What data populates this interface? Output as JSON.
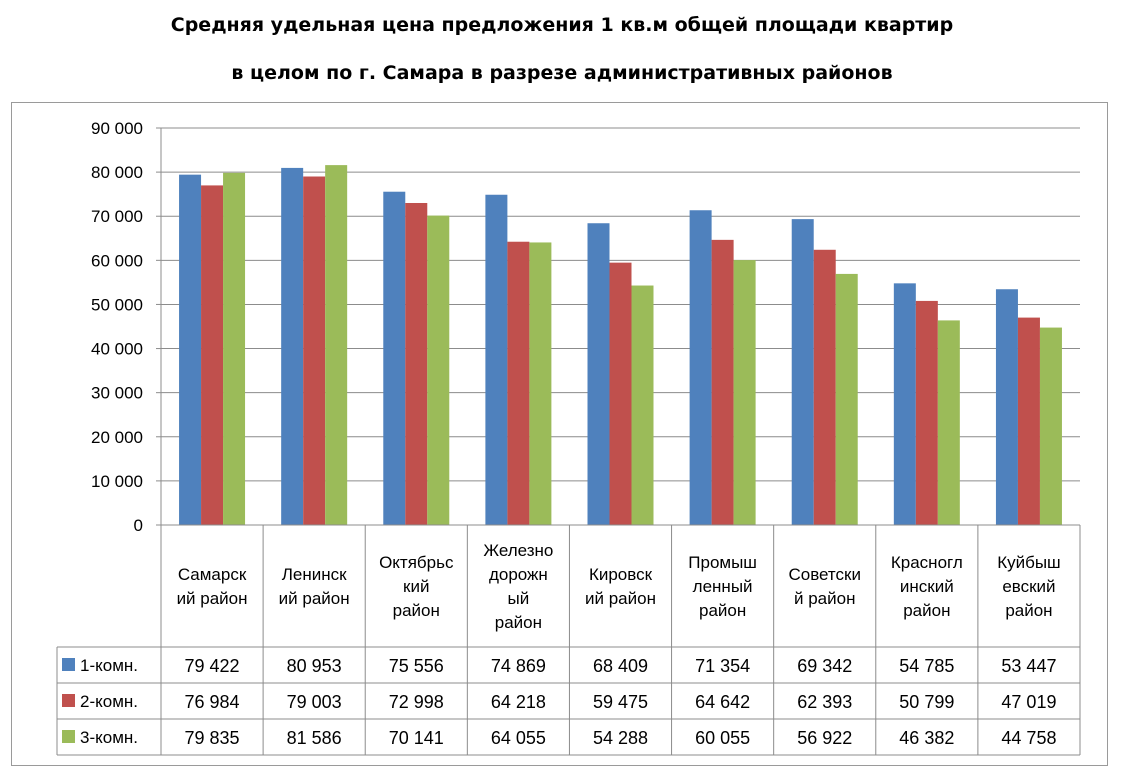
{
  "title_line1": "Средняя удельная цена предложения 1 кв.м общей площади квартир",
  "title_line2": "в целом по г. Самара в разрезе административных районов",
  "chart_data": {
    "type": "bar",
    "title": "Средняя удельная цена предложения 1 кв.м общей площади квартир в целом по г. Самара в разрезе административных районов",
    "categories": [
      [
        "Самарск",
        "ий район"
      ],
      [
        "Ленинск",
        "ий район"
      ],
      [
        "Октябрьс",
        "кий",
        "район"
      ],
      [
        "Железно",
        "дорожн",
        "ый",
        "район"
      ],
      [
        "Кировск",
        "ий район"
      ],
      [
        "Промыш",
        "ленный",
        "район"
      ],
      [
        "Советски",
        "й район"
      ],
      [
        "Красногл",
        "инский",
        "район"
      ],
      [
        "Куйбыш",
        "евский",
        "район"
      ]
    ],
    "series": [
      {
        "name": "1-комн.",
        "color": "#4f81bd",
        "values": [
          79422,
          80953,
          75556,
          74869,
          68409,
          71354,
          69342,
          54785,
          53447
        ],
        "labels": [
          "79 422",
          "80 953",
          "75 556",
          "74 869",
          "68 409",
          "71 354",
          "69 342",
          "54 785",
          "53 447"
        ]
      },
      {
        "name": "2-комн.",
        "color": "#c0504d",
        "values": [
          76984,
          79003,
          72998,
          64218,
          59475,
          64642,
          62393,
          50799,
          47019
        ],
        "labels": [
          "76 984",
          "79 003",
          "72 998",
          "64 218",
          "59 475",
          "64 642",
          "62 393",
          "50 799",
          "47 019"
        ]
      },
      {
        "name": "3-комн.",
        "color": "#9bbb59",
        "values": [
          79835,
          81586,
          70141,
          64055,
          54288,
          60055,
          56922,
          46382,
          44758
        ],
        "labels": [
          "79 835",
          "81 586",
          "70 141",
          "64 055",
          "54 288",
          "60 055",
          "56 922",
          "46 382",
          "44 758"
        ]
      }
    ],
    "ylim": [
      0,
      90000
    ],
    "yticks": [
      0,
      10000,
      20000,
      30000,
      40000,
      50000,
      60000,
      70000,
      80000,
      90000
    ],
    "ytick_labels": [
      "0",
      "10 000",
      "20 000",
      "30 000",
      "40 000",
      "50 000",
      "60 000",
      "70 000",
      "80 000",
      "90 000"
    ],
    "grid": true,
    "legend": "data-table"
  }
}
